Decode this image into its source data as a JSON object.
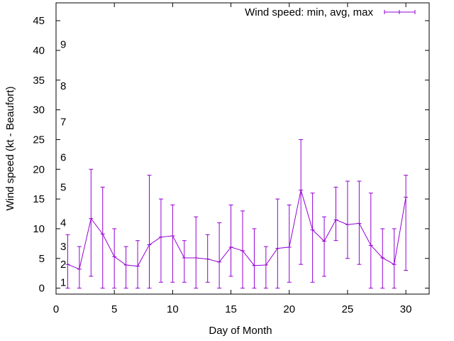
{
  "colors": {
    "series": "#9400d3",
    "frame": "#000000",
    "background": "#ffffff"
  },
  "chart_data": {
    "type": "line",
    "title": "",
    "xlabel": "Day of Month",
    "ylabel": "Wind speed (kt - Beaufort)",
    "xlim": [
      0,
      32
    ],
    "ylim": [
      -1,
      48
    ],
    "grid": false,
    "legend_position": "top-right",
    "x_ticks": [
      "0",
      "5",
      "10",
      "15",
      "20",
      "25",
      "30"
    ],
    "y_ticks": [
      "0",
      "5",
      "10",
      "15",
      "20",
      "25",
      "30",
      "35",
      "40",
      "45"
    ],
    "beaufort_labels": [
      {
        "label": "1",
        "y": 1
      },
      {
        "label": "2",
        "y": 4
      },
      {
        "label": "3",
        "y": 7
      },
      {
        "label": "4",
        "y": 11
      },
      {
        "label": "5",
        "y": 17
      },
      {
        "label": "6",
        "y": 22
      },
      {
        "label": "7",
        "y": 28
      },
      {
        "label": "8",
        "y": 34
      },
      {
        "label": "9",
        "y": 41
      }
    ],
    "series": [
      {
        "name": "Wind speed: min, avg, max",
        "x": [
          1,
          2,
          3,
          4,
          5,
          6,
          7,
          8,
          9,
          10,
          11,
          12,
          13,
          14,
          15,
          16,
          17,
          18,
          19,
          20,
          21,
          22,
          23,
          24,
          25,
          26,
          27,
          28,
          29,
          30
        ],
        "avg": [
          4,
          3.2,
          11.7,
          9.1,
          5.3,
          3.9,
          3.7,
          7.3,
          8.6,
          8.8,
          5.1,
          5.1,
          4.9,
          4.4,
          6.9,
          6.3,
          3.8,
          3.9,
          6.7,
          6.9,
          16.5,
          9.8,
          7.9,
          11.5,
          10.7,
          10.9,
          7.2,
          5.1,
          4,
          15.3
        ],
        "min": [
          0,
          0,
          2,
          0,
          0,
          0,
          0,
          0,
          1,
          1,
          1,
          0,
          1,
          0,
          2,
          0,
          0,
          0,
          0,
          1,
          4,
          1,
          2,
          8,
          5,
          4,
          0,
          0,
          0,
          3
        ],
        "max": [
          9,
          7,
          20,
          17,
          10,
          7,
          8,
          19,
          15,
          14,
          8,
          12,
          9,
          11,
          14,
          13,
          10,
          7,
          15,
          14,
          25,
          16,
          12,
          17,
          18,
          18,
          16,
          10,
          10,
          19
        ]
      }
    ]
  }
}
